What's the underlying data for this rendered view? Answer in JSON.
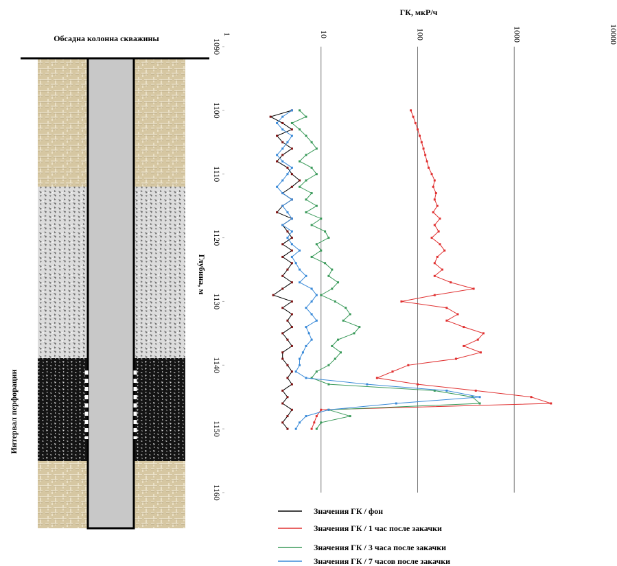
{
  "chart_data": {
    "type": "line",
    "title": "ГК, мкР/ч",
    "y_label": "Глубина, м",
    "casing_label": "Обсадна колонна скважины",
    "perforation_label": "Интервал перфорации",
    "xscale": "log",
    "xlim": [
      1,
      10000
    ],
    "xticks": [
      1,
      10,
      100,
      1000,
      10000
    ],
    "ylim": [
      1090,
      1160
    ],
    "yticks": [
      1090,
      1100,
      1110,
      1120,
      1130,
      1140,
      1150,
      1160
    ],
    "grid": true,
    "y": [
      1100,
      1101,
      1102,
      1103,
      1104,
      1105,
      1106,
      1107,
      1108,
      1109,
      1110,
      1111,
      1112,
      1113,
      1114,
      1115,
      1116,
      1117,
      1118,
      1119,
      1120,
      1121,
      1122,
      1123,
      1124,
      1125,
      1126,
      1127,
      1128,
      1129,
      1130,
      1131,
      1132,
      1133,
      1134,
      1135,
      1136,
      1137,
      1138,
      1139,
      1140,
      1141,
      1142,
      1143,
      1144,
      1145,
      1146,
      1147,
      1148,
      1149,
      1150
    ],
    "series": [
      {
        "name": "Значения ГК / фон",
        "color": "#000000",
        "values": [
          5,
          3,
          4,
          5,
          3.5,
          4,
          5,
          4,
          3.5,
          4.5,
          5,
          6,
          5,
          4,
          5,
          4,
          3.5,
          5,
          4,
          4.5,
          5,
          4,
          5,
          4,
          5,
          4.5,
          4,
          5,
          4,
          3.2,
          5,
          4,
          5,
          4.5,
          5,
          4,
          4.5,
          5,
          4,
          4,
          4.5,
          5,
          4.5,
          5,
          4,
          4.5,
          4,
          5,
          4.5,
          4,
          4.5
        ]
      },
      {
        "name": "Значения ГК / 1 час после закачки",
        "color": "#e03030",
        "values": [
          85,
          90,
          95,
          100,
          105,
          110,
          115,
          120,
          125,
          130,
          140,
          150,
          145,
          155,
          150,
          160,
          145,
          170,
          150,
          165,
          140,
          170,
          190,
          160,
          150,
          180,
          150,
          220,
          380,
          150,
          68,
          200,
          260,
          200,
          300,
          480,
          420,
          300,
          450,
          250,
          80,
          55,
          38,
          100,
          400,
          1500,
          2400,
          10,
          9,
          8.5,
          8
        ]
      },
      {
        "name": "Значения ГК / 3 часа после закачки",
        "color": "#3a9a5a",
        "values": [
          6,
          7,
          5,
          6,
          7,
          8,
          9,
          7,
          6,
          8,
          9,
          7,
          6,
          8,
          7,
          9,
          7,
          10,
          8,
          11,
          12,
          9,
          10,
          8,
          11,
          13,
          12,
          15,
          13,
          10,
          14,
          18,
          20,
          17,
          25,
          22,
          15,
          13,
          16,
          14,
          12,
          9,
          8,
          12,
          150,
          370,
          440,
          12,
          20,
          10,
          9
        ]
      },
      {
        "name": "Значения ГК / 7 часов после закачки",
        "color": "#3a8ad8",
        "values": [
          5,
          4,
          3.5,
          4,
          5,
          4.5,
          4,
          3.5,
          4,
          5,
          4.5,
          4,
          3.5,
          4,
          5,
          4,
          4.5,
          5,
          4,
          5,
          4.5,
          5,
          6,
          5,
          5.5,
          6,
          7,
          6,
          8,
          9,
          8,
          7,
          8,
          9,
          7,
          7.5,
          8,
          7,
          6.5,
          6,
          6,
          5.5,
          7,
          30,
          200,
          440,
          60,
          12,
          7,
          6,
          5.5
        ]
      }
    ]
  }
}
